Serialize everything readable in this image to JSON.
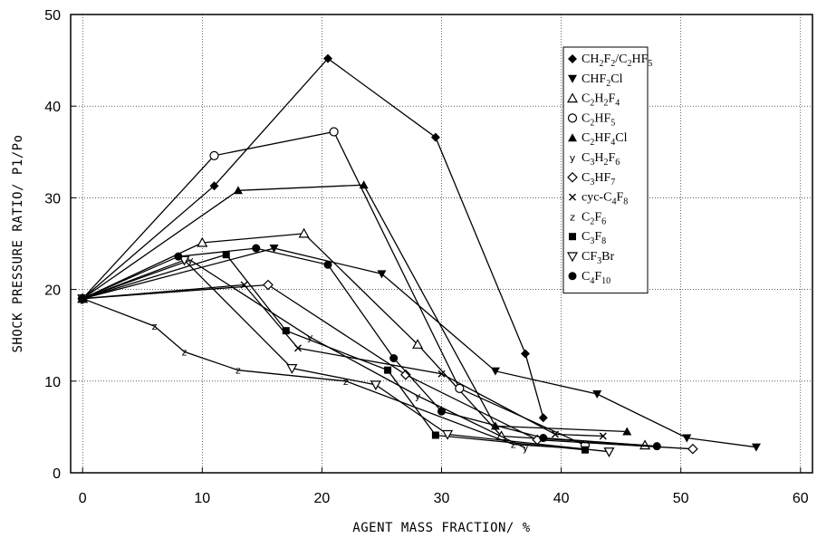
{
  "chart_data": {
    "type": "line",
    "title": "",
    "xlabel": "AGENT MASS FRACTION/ %",
    "ylabel": "SHOCK PRESSURE RATIO/ P1/Po",
    "xlim": [
      -1,
      61
    ],
    "ylim": [
      0,
      50
    ],
    "xticks": [
      "0",
      "10",
      "20",
      "30",
      "40",
      "50",
      "60"
    ],
    "yticks": [
      "0",
      "10",
      "20",
      "30",
      "40",
      "50"
    ],
    "grid": true,
    "legend_position": "top-right",
    "series": [
      {
        "name": "CH2F2/C2HF5",
        "legend": [
          [
            "CH",
            ""
          ],
          [
            "2",
            "sub"
          ],
          [
            "F",
            ""
          ],
          [
            "2",
            "sub"
          ],
          [
            "/C",
            ""
          ],
          [
            "2",
            "sub"
          ],
          [
            "HF",
            ""
          ],
          [
            "5",
            "sub"
          ]
        ],
        "marker": "diamond-filled",
        "x": [
          0,
          11,
          20.5,
          29.5,
          37,
          38.5
        ],
        "y": [
          19,
          31.3,
          45.2,
          36.6,
          13,
          6
        ]
      },
      {
        "name": "CHF2Cl",
        "legend": [
          [
            "CHF",
            ""
          ],
          [
            "2",
            "sub"
          ],
          [
            "Cl",
            ""
          ]
        ],
        "marker": "triangle-down-filled",
        "x": [
          0,
          16,
          25,
          34.5,
          43,
          50.5,
          56.3
        ],
        "y": [
          19,
          24.5,
          21.7,
          11.1,
          8.6,
          3.8,
          2.8
        ]
      },
      {
        "name": "C2H2F4",
        "legend": [
          [
            "C",
            ""
          ],
          [
            "2",
            "sub"
          ],
          [
            "H",
            ""
          ],
          [
            "2",
            "sub"
          ],
          [
            "F",
            ""
          ],
          [
            "4",
            "sub"
          ]
        ],
        "marker": "triangle-up-open",
        "x": [
          0,
          10,
          18.5,
          28,
          35,
          47
        ],
        "y": [
          19,
          25.1,
          26.1,
          14,
          4,
          3
        ]
      },
      {
        "name": "C2HF5",
        "legend": [
          [
            "C",
            ""
          ],
          [
            "2",
            "sub"
          ],
          [
            "HF",
            ""
          ],
          [
            "5",
            "sub"
          ]
        ],
        "marker": "circle-open",
        "x": [
          0,
          11,
          21,
          31.5,
          42
        ],
        "y": [
          19,
          34.6,
          37.2,
          9.2,
          3
        ]
      },
      {
        "name": "C2HF4Cl",
        "legend": [
          [
            "C",
            ""
          ],
          [
            "2",
            "sub"
          ],
          [
            "HF",
            ""
          ],
          [
            "4",
            "sub"
          ],
          [
            "Cl",
            ""
          ]
        ],
        "marker": "triangle-up-filled",
        "x": [
          0,
          13,
          23.5,
          34.5,
          45.5
        ],
        "y": [
          19,
          30.8,
          31.4,
          5.1,
          4.5
        ]
      },
      {
        "name": "C3H2F6",
        "legend": [
          [
            "C",
            ""
          ],
          [
            "3",
            "sub"
          ],
          [
            "H",
            ""
          ],
          [
            "2",
            "sub"
          ],
          [
            "F",
            ""
          ],
          [
            "6",
            "sub"
          ]
        ],
        "marker": "letter-y",
        "x": [
          0,
          9,
          19,
          28,
          37
        ],
        "y": [
          19,
          23.2,
          14.8,
          8.4,
          2.7
        ]
      },
      {
        "name": "C3HF7",
        "legend": [
          [
            "C",
            ""
          ],
          [
            "3",
            "sub"
          ],
          [
            "HF",
            ""
          ],
          [
            "7",
            "sub"
          ]
        ],
        "marker": "diamond-open",
        "x": [
          0,
          15.5,
          27,
          38,
          51
        ],
        "y": [
          19,
          20.5,
          10.7,
          3.6,
          2.6
        ]
      },
      {
        "name": "cyc-C4F8",
        "legend": [
          [
            "cyc-C",
            ""
          ],
          [
            "4",
            "sub"
          ],
          [
            "F",
            ""
          ],
          [
            "8",
            "sub"
          ]
        ],
        "marker": "x",
        "x": [
          0,
          13.5,
          18,
          30,
          39.5,
          43.5
        ],
        "y": [
          19,
          20.5,
          13.6,
          10.8,
          4.2,
          4
        ]
      },
      {
        "name": "C2F6",
        "legend": [
          [
            "C",
            ""
          ],
          [
            "2",
            "sub"
          ],
          [
            "F",
            ""
          ],
          [
            "6",
            "sub"
          ]
        ],
        "marker": "letter-z",
        "x": [
          0,
          6,
          8.5,
          13,
          22,
          36,
          42
        ],
        "y": [
          19,
          16,
          13.2,
          11.2,
          10,
          3.1,
          2.6
        ]
      },
      {
        "name": "C3F8",
        "legend": [
          [
            "C",
            ""
          ],
          [
            "3",
            "sub"
          ],
          [
            "F",
            ""
          ],
          [
            "8",
            "sub"
          ]
        ],
        "marker": "square-filled",
        "x": [
          0,
          12,
          17,
          25.5,
          29.5,
          42
        ],
        "y": [
          19,
          23.8,
          15.5,
          11.2,
          4.1,
          2.5
        ]
      },
      {
        "name": "CF3Br",
        "legend": [
          [
            "CF",
            ""
          ],
          [
            "3",
            "sub"
          ],
          [
            "Br",
            ""
          ]
        ],
        "marker": "triangle-down-open",
        "x": [
          0,
          8.5,
          17.5,
          24.5,
          30.5,
          44
        ],
        "y": [
          19,
          23.2,
          11.4,
          9.6,
          4.2,
          2.3
        ]
      },
      {
        "name": "C4F10",
        "legend": [
          [
            "C",
            ""
          ],
          [
            "4",
            "sub"
          ],
          [
            "F",
            ""
          ],
          [
            "10",
            "sub"
          ]
        ],
        "marker": "circle-filled",
        "x": [
          0,
          8,
          14.5,
          20.5,
          26,
          30,
          38.5,
          48
        ],
        "y": [
          19,
          23.6,
          24.5,
          22.7,
          12.5,
          6.7,
          3.8,
          2.9
        ]
      }
    ]
  }
}
